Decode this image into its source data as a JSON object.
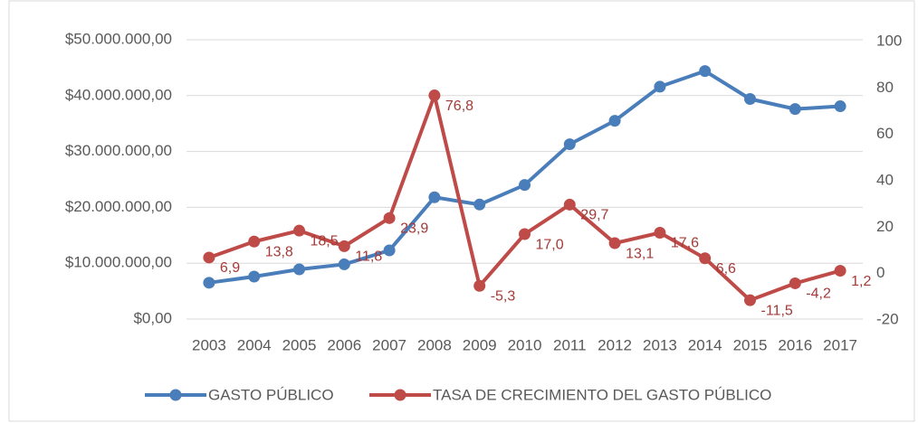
{
  "chart_data": {
    "type": "line",
    "categories": [
      "2003",
      "2004",
      "2005",
      "2006",
      "2007",
      "2008",
      "2009",
      "2010",
      "2011",
      "2012",
      "2013",
      "2014",
      "2015",
      "2016",
      "2017"
    ],
    "series": [
      {
        "name": "GASTO PÚBLICO",
        "color": "#4a7ebb",
        "values": [
          6500000,
          7600000,
          8900000,
          9800000,
          12300000,
          21800000,
          20500000,
          24000000,
          31300000,
          35500000,
          41600000,
          44400000,
          39400000,
          37600000,
          38100000
        ]
      },
      {
        "name": "TASA DE CRECIMIENTO DEL GASTO PÚBLICO",
        "color": "#be4b48",
        "axis": "y2",
        "values": [
          6.9,
          13.8,
          18.5,
          11.8,
          23.9,
          76.8,
          -5.3,
          17.0,
          29.7,
          13.1,
          17.6,
          6.6,
          -11.5,
          -4.2,
          1.2
        ],
        "value_labels": [
          "6,9",
          "13,8",
          "18,5",
          "11,8",
          "23,9",
          "76,8",
          "-5,3",
          "17,0",
          "29,7",
          "13,1",
          "17,6",
          "6,6",
          "-11,5",
          "-4,2",
          "1,2"
        ]
      }
    ],
    "ylim": [
      0,
      50000000
    ],
    "yticks": [
      {
        "value": 0,
        "label": "$0,00"
      },
      {
        "value": 10000000,
        "label": "$10.000.000,00"
      },
      {
        "value": 20000000,
        "label": "$20.000.000,00"
      },
      {
        "value": 30000000,
        "label": "$30.000.000,00"
      },
      {
        "value": 40000000,
        "label": "$40.000.000,00"
      },
      {
        "value": 50000000,
        "label": "$50.000.000,00"
      }
    ],
    "y2lim": [
      -20,
      100
    ],
    "y2ticks": [
      -20,
      0,
      20,
      40,
      60,
      80,
      100
    ],
    "grid": true,
    "legend": "bottom"
  }
}
